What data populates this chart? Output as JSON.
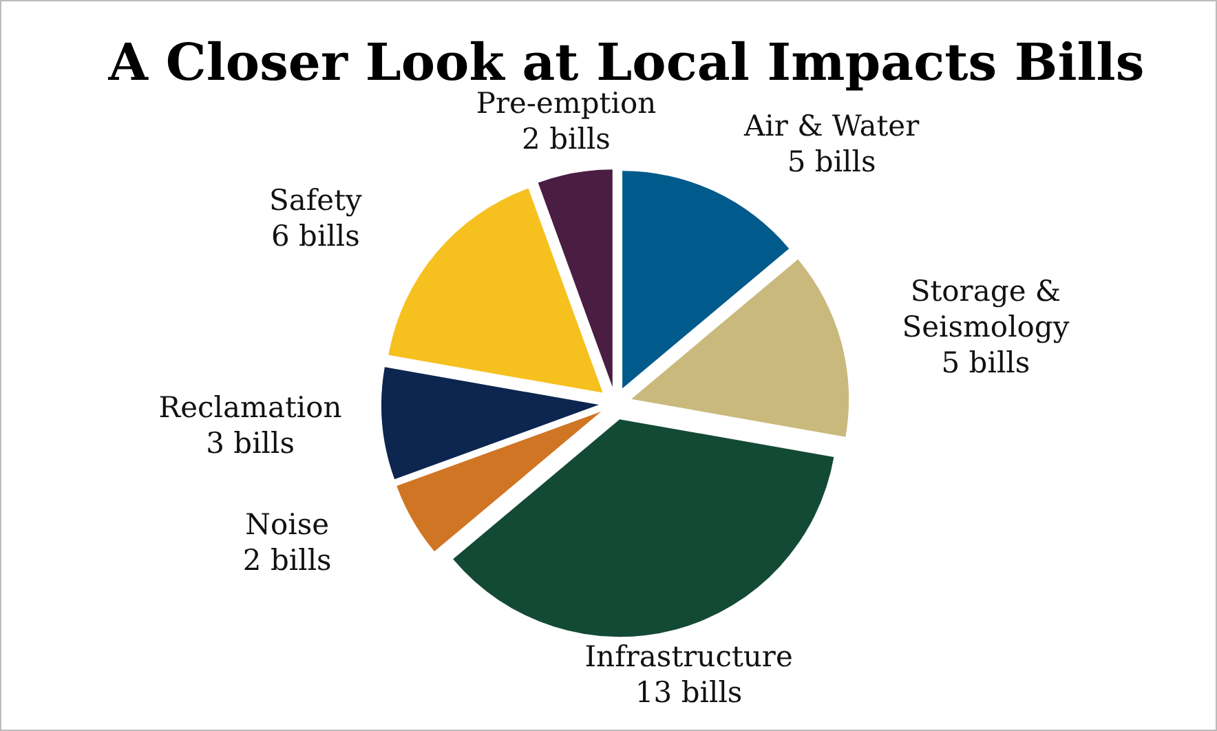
{
  "chart_data": {
    "type": "pie",
    "title": "A Closer Look at Local Impacts Bills",
    "categories": [
      "Air & Water",
      "Storage & Seismology",
      "Infrastructure",
      "Noise",
      "Reclamation",
      "Safety",
      "Pre-emption"
    ],
    "values": [
      5,
      5,
      13,
      2,
      3,
      6,
      2
    ],
    "value_labels": [
      "5 bills",
      "5 bills",
      "13 bills",
      "2 bills",
      "3 bills",
      "6 bills",
      "2 bills"
    ],
    "colors": [
      "#005a8b",
      "#c9b97c",
      "#134a35",
      "#d07524",
      "#0c2650",
      "#f6c01f",
      "#4a1d42"
    ]
  }
}
